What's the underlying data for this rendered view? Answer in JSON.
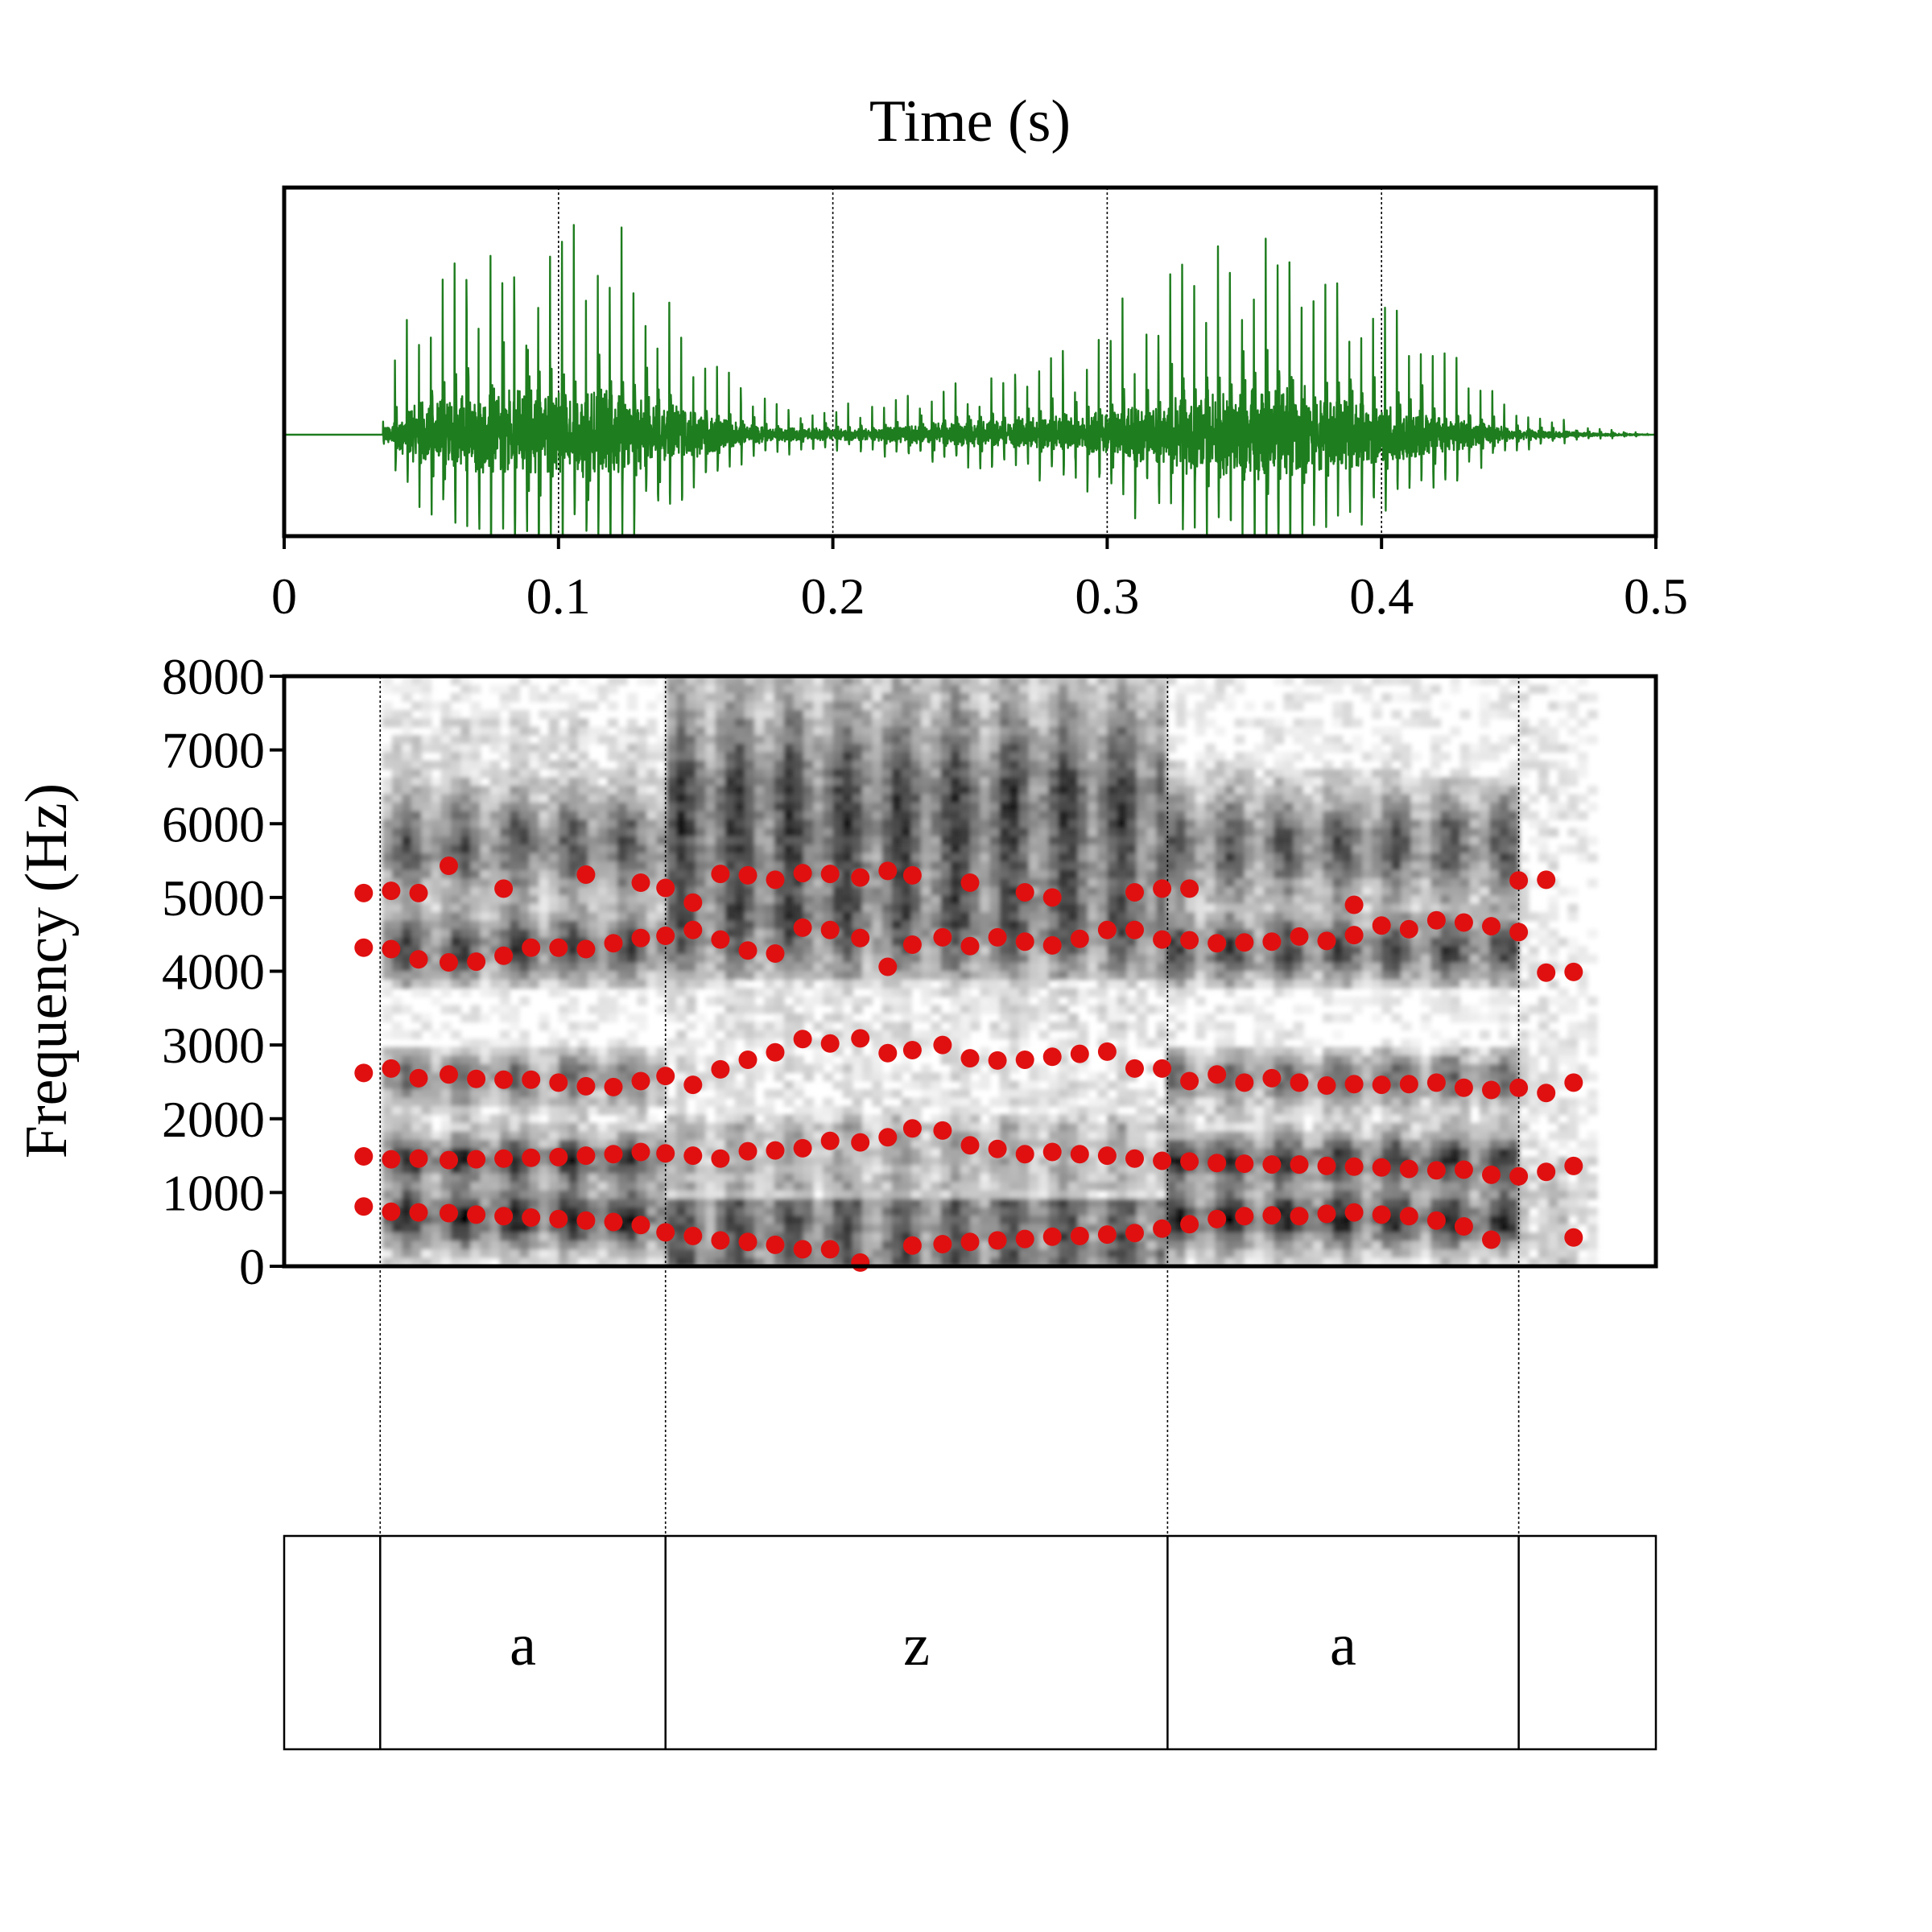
{
  "chart_data": [
    {
      "type": "line",
      "title": "Time (s)",
      "xlabel": "",
      "ylabel": "",
      "xlim": [
        0,
        0.5
      ],
      "x_ticks": [
        "0",
        "0.1",
        "0.2",
        "0.3",
        "0.4",
        "0.5"
      ],
      "x_tick_values": [
        0,
        0.1,
        0.2,
        0.3,
        0.4,
        0.5
      ],
      "grid_x": [
        0.1,
        0.2,
        0.3,
        0.4
      ],
      "series": [
        {
          "color": "#1e7d1e",
          "onset_s": 0.036,
          "envelope": [
            [
              0.0,
              0.0
            ],
            [
              0.035,
              0.0
            ],
            [
              0.037,
              0.16
            ],
            [
              0.045,
              0.55
            ],
            [
              0.06,
              0.78
            ],
            [
              0.075,
              0.9
            ],
            [
              0.09,
              0.98
            ],
            [
              0.105,
              1.0
            ],
            [
              0.12,
              0.92
            ],
            [
              0.135,
              0.72
            ],
            [
              0.15,
              0.48
            ],
            [
              0.165,
              0.26
            ],
            [
              0.18,
              0.15
            ],
            [
              0.2,
              0.12
            ],
            [
              0.22,
              0.16
            ],
            [
              0.24,
              0.24
            ],
            [
              0.26,
              0.3
            ],
            [
              0.28,
              0.38
            ],
            [
              0.3,
              0.5
            ],
            [
              0.32,
              0.74
            ],
            [
              0.34,
              0.88
            ],
            [
              0.355,
              0.98
            ],
            [
              0.37,
              0.95
            ],
            [
              0.385,
              0.82
            ],
            [
              0.4,
              0.66
            ],
            [
              0.415,
              0.5
            ],
            [
              0.43,
              0.32
            ],
            [
              0.445,
              0.16
            ],
            [
              0.46,
              0.08
            ],
            [
              0.475,
              0.04
            ],
            [
              0.49,
              0.02
            ],
            [
              0.5,
              0.0
            ]
          ]
        }
      ]
    },
    {
      "type": "scatter",
      "title": "",
      "xlabel": "",
      "ylabel": "Frequency (Hz)",
      "xlim": [
        0,
        0.5
      ],
      "ylim": [
        0,
        8000
      ],
      "y_ticks": [
        "0",
        "1000",
        "2000",
        "3000",
        "4000",
        "5000",
        "6000",
        "7000",
        "8000"
      ],
      "y_tick_values": [
        0,
        1000,
        2000,
        3000,
        4000,
        5000,
        6000,
        7000,
        8000
      ],
      "grid_x": [
        0.035,
        0.139,
        0.322,
        0.45
      ],
      "marker_color": "#e01010",
      "background": "spectrogram (grayscale)",
      "series": [
        {
          "name": "",
          "x": [
            0.029,
            0.039,
            0.049,
            0.06,
            0.07,
            0.08,
            0.09,
            0.1,
            0.11,
            0.12,
            0.13,
            0.139,
            0.149,
            0.159,
            0.169,
            0.179,
            0.189,
            0.199,
            0.21,
            0.229,
            0.24,
            0.25,
            0.26,
            0.27,
            0.28,
            0.29,
            0.3,
            0.31,
            0.32,
            0.33,
            0.34,
            0.35,
            0.36,
            0.37,
            0.38,
            0.39,
            0.4,
            0.41,
            0.42,
            0.43,
            0.44,
            0.47
          ],
          "y": [
            810,
            740,
            730,
            720,
            700,
            680,
            660,
            640,
            620,
            600,
            560,
            460,
            410,
            350,
            330,
            290,
            230,
            230,
            50,
            280,
            300,
            330,
            350,
            370,
            400,
            410,
            430,
            450,
            510,
            570,
            640,
            680,
            690,
            680,
            710,
            730,
            700,
            680,
            620,
            540,
            360,
            390
          ]
        },
        {
          "name": "",
          "x": [
            0.029,
            0.039,
            0.049,
            0.06,
            0.07,
            0.08,
            0.09,
            0.1,
            0.11,
            0.12,
            0.13,
            0.139,
            0.149,
            0.159,
            0.169,
            0.179,
            0.189,
            0.199,
            0.21,
            0.22,
            0.229,
            0.24,
            0.25,
            0.26,
            0.27,
            0.28,
            0.29,
            0.3,
            0.31,
            0.32,
            0.33,
            0.34,
            0.35,
            0.36,
            0.37,
            0.38,
            0.39,
            0.4,
            0.41,
            0.42,
            0.43,
            0.44,
            0.45,
            0.46,
            0.47
          ],
          "y": [
            1490,
            1450,
            1460,
            1440,
            1450,
            1460,
            1470,
            1480,
            1500,
            1520,
            1550,
            1530,
            1500,
            1460,
            1560,
            1570,
            1600,
            1700,
            1680,
            1750,
            1870,
            1840,
            1640,
            1590,
            1520,
            1550,
            1520,
            1500,
            1460,
            1430,
            1420,
            1400,
            1390,
            1380,
            1380,
            1360,
            1350,
            1340,
            1320,
            1300,
            1310,
            1240,
            1220,
            1280,
            1360
          ]
        },
        {
          "name": "",
          "x": [
            0.029,
            0.039,
            0.049,
            0.06,
            0.07,
            0.08,
            0.09,
            0.1,
            0.11,
            0.12,
            0.13,
            0.139,
            0.149,
            0.159,
            0.169,
            0.179,
            0.189,
            0.199,
            0.21,
            0.22,
            0.229,
            0.24,
            0.25,
            0.26,
            0.27,
            0.28,
            0.29,
            0.3,
            0.31,
            0.32,
            0.33,
            0.34,
            0.35,
            0.36,
            0.37,
            0.38,
            0.39,
            0.4,
            0.41,
            0.42,
            0.43,
            0.44,
            0.45,
            0.46,
            0.47
          ],
          "y": [
            2620,
            2680,
            2550,
            2600,
            2540,
            2530,
            2530,
            2490,
            2440,
            2430,
            2510,
            2580,
            2460,
            2670,
            2800,
            2900,
            3080,
            3020,
            3090,
            2890,
            2930,
            3000,
            2820,
            2790,
            2800,
            2840,
            2880,
            2910,
            2680,
            2680,
            2510,
            2600,
            2490,
            2550,
            2490,
            2450,
            2470,
            2460,
            2470,
            2490,
            2420,
            2390,
            2420,
            2350,
            2490
          ]
        },
        {
          "name": "",
          "x": [
            0.029,
            0.039,
            0.049,
            0.06,
            0.07,
            0.08,
            0.09,
            0.1,
            0.11,
            0.12,
            0.13,
            0.139,
            0.149,
            0.159,
            0.169,
            0.179,
            0.189,
            0.199,
            0.21,
            0.22,
            0.229,
            0.24,
            0.25,
            0.26,
            0.27,
            0.28,
            0.29,
            0.3,
            0.31,
            0.32,
            0.33,
            0.34,
            0.35,
            0.36,
            0.37,
            0.38,
            0.39,
            0.4,
            0.41,
            0.42,
            0.43,
            0.44,
            0.45,
            0.46,
            0.47
          ],
          "y": [
            4320,
            4300,
            4160,
            4120,
            4130,
            4210,
            4320,
            4320,
            4300,
            4380,
            4450,
            4480,
            4560,
            4430,
            4280,
            4240,
            4590,
            4560,
            4450,
            4060,
            4360,
            4460,
            4340,
            4460,
            4400,
            4350,
            4440,
            4560,
            4560,
            4430,
            4420,
            4380,
            4390,
            4400,
            4470,
            4410,
            4490,
            4620,
            4570,
            4690,
            4660,
            4610,
            4530,
            3980,
            3990
          ]
        },
        {
          "name": "",
          "x": [
            0.029,
            0.039,
            0.049,
            0.06,
            0.08,
            0.11,
            0.13,
            0.139,
            0.149,
            0.159,
            0.169,
            0.179,
            0.189,
            0.199,
            0.21,
            0.22,
            0.229,
            0.25,
            0.27,
            0.28,
            0.31,
            0.32,
            0.33,
            0.39,
            0.45,
            0.46
          ],
          "y": [
            5060,
            5090,
            5060,
            5430,
            5120,
            5310,
            5200,
            5130,
            4930,
            5320,
            5300,
            5240,
            5330,
            5320,
            5270,
            5360,
            5300,
            5200,
            5070,
            5000,
            5070,
            5120,
            5120,
            4900,
            5230,
            5240
          ]
        }
      ],
      "tiers": [
        {
          "boundaries": [
            0.035,
            0.139,
            0.322,
            0.45
          ],
          "labels": [
            "",
            "a",
            "z",
            "a",
            ""
          ]
        }
      ]
    }
  ]
}
